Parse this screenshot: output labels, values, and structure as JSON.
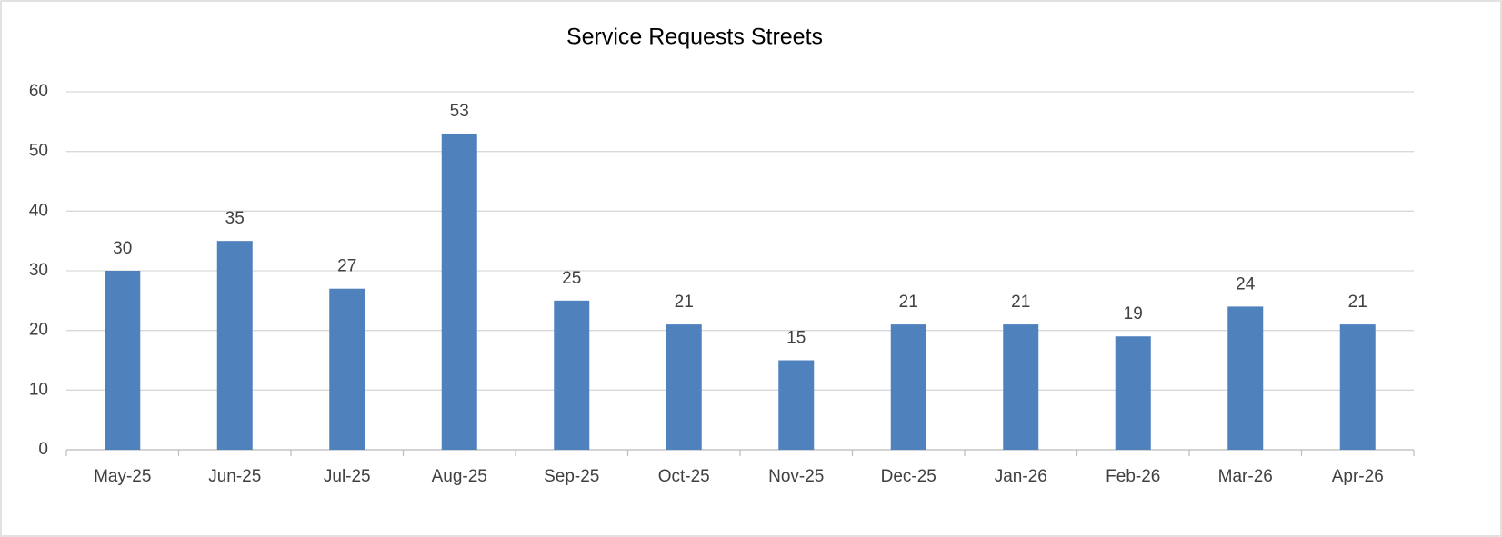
{
  "chart_data": {
    "type": "bar",
    "title": "Service Requests Streets",
    "categories": [
      "May-25",
      "Jun-25",
      "Jul-25",
      "Aug-25",
      "Sep-25",
      "Oct-25",
      "Nov-25",
      "Dec-25",
      "Jan-26",
      "Feb-26",
      "Mar-26",
      "Apr-26"
    ],
    "values": [
      30,
      35,
      27,
      53,
      25,
      21,
      15,
      21,
      21,
      19,
      24,
      21
    ],
    "color": "#4f81bd",
    "ylim": [
      0,
      60
    ],
    "yticks": [
      0,
      10,
      20,
      30,
      40,
      50,
      60
    ],
    "grid": true
  }
}
